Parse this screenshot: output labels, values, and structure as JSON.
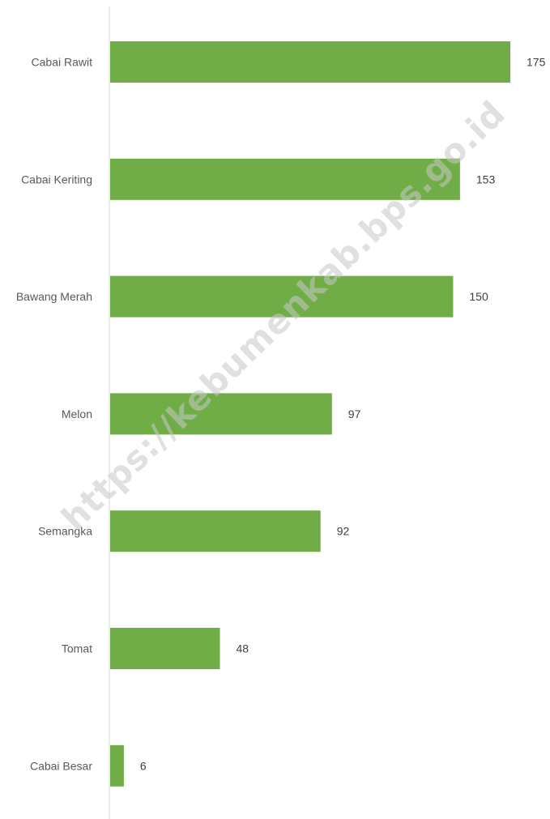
{
  "chart_data": {
    "type": "bar",
    "orientation": "horizontal",
    "categories": [
      "Cabai Rawit",
      "Cabai Keriting",
      "Bawang Merah",
      "Melon",
      "Semangka",
      "Tomat",
      "Cabai Besar"
    ],
    "values": [
      175,
      153,
      150,
      97,
      92,
      48,
      6
    ],
    "data_labels": [
      "175",
      "153",
      "150",
      "97",
      "92",
      "48",
      "6"
    ],
    "xlim": [
      0,
      175
    ],
    "grid": false,
    "legend": "none",
    "bar_color": "#70AD47",
    "axis_color": "#D9D9D9"
  },
  "watermark": {
    "text": "https://kebumenkab.bps.go.id",
    "color": "#C8C8C8"
  }
}
